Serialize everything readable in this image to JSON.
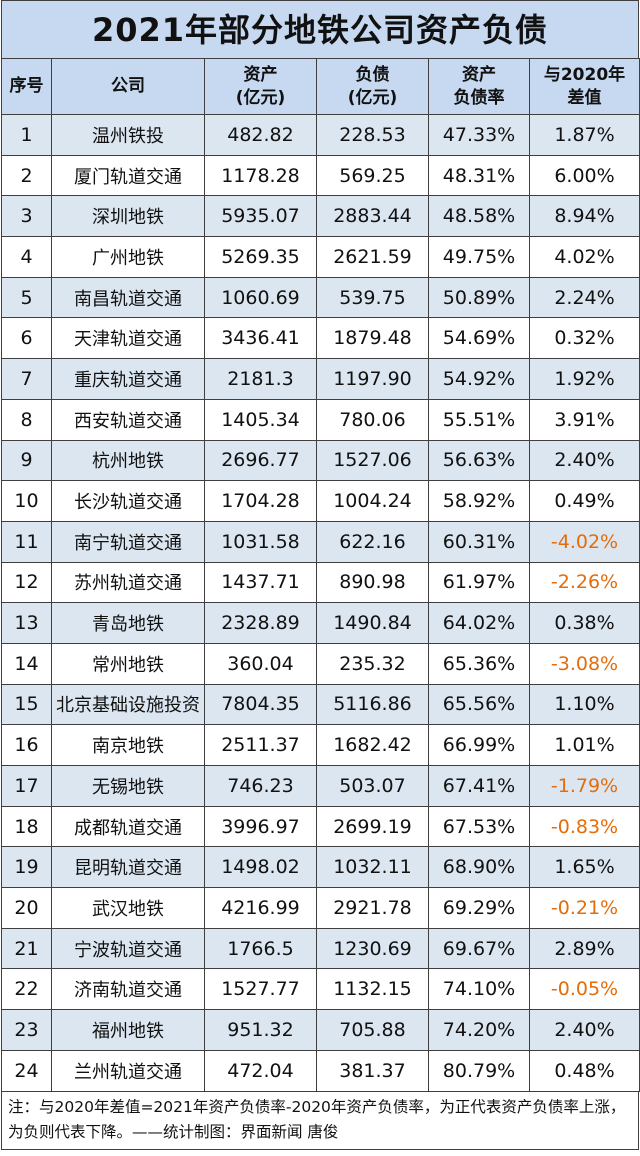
{
  "title": "2021年部分地铁公司资产负债",
  "headers": {
    "index": "序号",
    "company": "公司",
    "assets_line1": "资产",
    "assets_line2": "(亿元)",
    "liabilities_line1": "负债",
    "liabilities_line2": "(亿元)",
    "ratio_line1": "资产",
    "ratio_line2": "负债率",
    "diff_line1": "与2020年",
    "diff_line2": "差值"
  },
  "rows": [
    {
      "index": "1",
      "company": "温州铁投",
      "assets": "482.82",
      "liabilities": "228.53",
      "ratio": "47.33%",
      "diff": "1.87%",
      "negative": false
    },
    {
      "index": "2",
      "company": "厦门轨道交通",
      "assets": "1178.28",
      "liabilities": "569.25",
      "ratio": "48.31%",
      "diff": "6.00%",
      "negative": false
    },
    {
      "index": "3",
      "company": "深圳地铁",
      "assets": "5935.07",
      "liabilities": "2883.44",
      "ratio": "48.58%",
      "diff": "8.94%",
      "negative": false
    },
    {
      "index": "4",
      "company": "广州地铁",
      "assets": "5269.35",
      "liabilities": "2621.59",
      "ratio": "49.75%",
      "diff": "4.02%",
      "negative": false
    },
    {
      "index": "5",
      "company": "南昌轨道交通",
      "assets": "1060.69",
      "liabilities": "539.75",
      "ratio": "50.89%",
      "diff": "2.24%",
      "negative": false
    },
    {
      "index": "6",
      "company": "天津轨道交通",
      "assets": "3436.41",
      "liabilities": "1879.48",
      "ratio": "54.69%",
      "diff": "0.32%",
      "negative": false
    },
    {
      "index": "7",
      "company": "重庆轨道交通",
      "assets": "2181.3",
      "liabilities": "1197.90",
      "ratio": "54.92%",
      "diff": "1.92%",
      "negative": false
    },
    {
      "index": "8",
      "company": "西安轨道交通",
      "assets": "1405.34",
      "liabilities": "780.06",
      "ratio": "55.51%",
      "diff": "3.91%",
      "negative": false
    },
    {
      "index": "9",
      "company": "杭州地铁",
      "assets": "2696.77",
      "liabilities": "1527.06",
      "ratio": "56.63%",
      "diff": "2.40%",
      "negative": false
    },
    {
      "index": "10",
      "company": "长沙轨道交通",
      "assets": "1704.28",
      "liabilities": "1004.24",
      "ratio": "58.92%",
      "diff": "0.49%",
      "negative": false
    },
    {
      "index": "11",
      "company": "南宁轨道交通",
      "assets": "1031.58",
      "liabilities": "622.16",
      "ratio": "60.31%",
      "diff": "-4.02%",
      "negative": true
    },
    {
      "index": "12",
      "company": "苏州轨道交通",
      "assets": "1437.71",
      "liabilities": "890.98",
      "ratio": "61.97%",
      "diff": "-2.26%",
      "negative": true
    },
    {
      "index": "13",
      "company": "青岛地铁",
      "assets": "2328.89",
      "liabilities": "1490.84",
      "ratio": "64.02%",
      "diff": "0.38%",
      "negative": false
    },
    {
      "index": "14",
      "company": "常州地铁",
      "assets": "360.04",
      "liabilities": "235.32",
      "ratio": "65.36%",
      "diff": "-3.08%",
      "negative": true
    },
    {
      "index": "15",
      "company": "北京基础设施投资",
      "assets": "7804.35",
      "liabilities": "5116.86",
      "ratio": "65.56%",
      "diff": "1.10%",
      "negative": false
    },
    {
      "index": "16",
      "company": "南京地铁",
      "assets": "2511.37",
      "liabilities": "1682.42",
      "ratio": "66.99%",
      "diff": "1.01%",
      "negative": false
    },
    {
      "index": "17",
      "company": "无锡地铁",
      "assets": "746.23",
      "liabilities": "503.07",
      "ratio": "67.41%",
      "diff": "-1.79%",
      "negative": true
    },
    {
      "index": "18",
      "company": "成都轨道交通",
      "assets": "3996.97",
      "liabilities": "2699.19",
      "ratio": "67.53%",
      "diff": "-0.83%",
      "negative": true
    },
    {
      "index": "19",
      "company": "昆明轨道交通",
      "assets": "1498.02",
      "liabilities": "1032.11",
      "ratio": "68.90%",
      "diff": "1.65%",
      "negative": false
    },
    {
      "index": "20",
      "company": "武汉地铁",
      "assets": "4216.99",
      "liabilities": "2921.78",
      "ratio": "69.29%",
      "diff": "-0.21%",
      "negative": true
    },
    {
      "index": "21",
      "company": "宁波轨道交通",
      "assets": "1766.5",
      "liabilities": "1230.69",
      "ratio": "69.67%",
      "diff": "2.89%",
      "negative": false
    },
    {
      "index": "22",
      "company": "济南轨道交通",
      "assets": "1527.77",
      "liabilities": "1132.15",
      "ratio": "74.10%",
      "diff": "-0.05%",
      "negative": true
    },
    {
      "index": "23",
      "company": "福州地铁",
      "assets": "951.32",
      "liabilities": "705.88",
      "ratio": "74.20%",
      "diff": "2.40%",
      "negative": false
    },
    {
      "index": "24",
      "company": "兰州轨道交通",
      "assets": "472.04",
      "liabilities": "381.37",
      "ratio": "80.79%",
      "diff": "0.48%",
      "negative": false
    }
  ],
  "footnote": "注：与2020年差值=2021年资产负债率-2020年资产负债率，为正代表资产负债率上涨，为负则代表下降。——统计制图：界面新闻 唐俊",
  "colors": {
    "header_bg": "#c6d9f1",
    "stripe_bg": "#dce6f1",
    "negative_text": "#e46c0a"
  }
}
